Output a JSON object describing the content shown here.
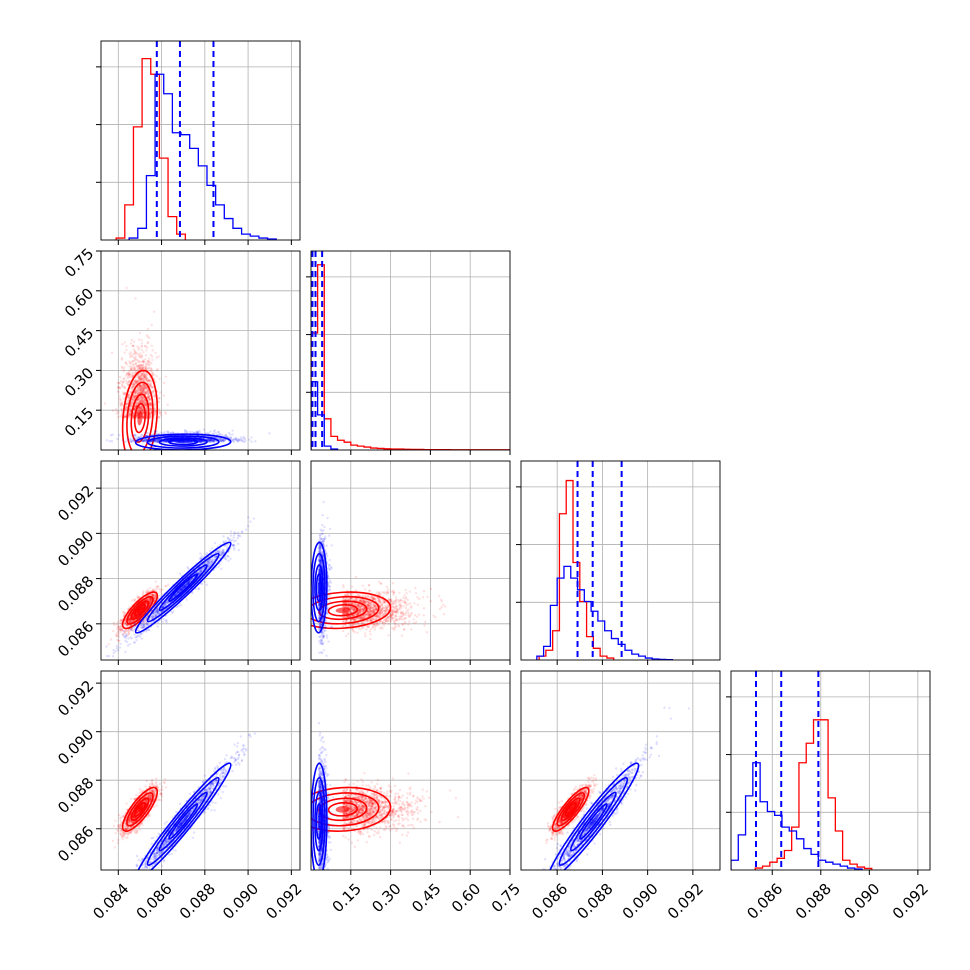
{
  "chart_data": {
    "type": "corner",
    "description_note": "",
    "parameters": [
      {
        "range": [
          0.0832,
          0.0924
        ],
        "ticks": [
          "0.084",
          "0.086",
          "0.088",
          "0.090",
          "0.092"
        ],
        "tick_values": [
          0.084,
          0.086,
          0.088,
          0.09,
          0.092
        ]
      },
      {
        "range": [
          0.0,
          0.75
        ],
        "ticks": [
          "0.15",
          "0.30",
          "0.45",
          "0.60",
          "0.75"
        ],
        "tick_values": [
          0.15,
          0.3,
          0.45,
          0.6,
          0.75
        ]
      },
      {
        "range": [
          0.0844,
          0.0932
        ],
        "ticks": [
          "0.086",
          "0.088",
          "0.090",
          "0.092"
        ],
        "tick_values": [
          0.086,
          0.088,
          0.09,
          0.092
        ]
      },
      {
        "range": [
          0.0843,
          0.0925
        ],
        "ticks": [
          "0.086",
          "0.088",
          "0.090",
          "0.092"
        ],
        "tick_values": [
          0.086,
          0.088,
          0.09,
          0.092
        ]
      }
    ],
    "series": [
      {
        "color": "#ff0000",
        "means": [
          0.085,
          0.12,
          0.0866,
          0.0868
        ],
        "sds": [
          0.0004,
          0.09,
          0.0004,
          0.00045
        ],
        "correlations": [
          [
            0,
            2,
            0.8
          ],
          [
            0,
            3,
            0.8
          ],
          [
            2,
            3,
            0.85
          ],
          [
            0,
            1,
            0.2
          ],
          [
            1,
            2,
            0.15
          ],
          [
            1,
            3,
            0.1
          ]
        ],
        "histograms": [
          {
            "start": 0.0839,
            "bin_width": 0.0004,
            "counts": [
              0.01,
              0.18,
              0.58,
              0.93,
              0.85,
              0.42,
              0.12,
              0.03
            ]
          },
          {
            "start": 0.0,
            "bin_width": 0.025,
            "counts": [
              0.6,
              0.95,
              0.16,
              0.07,
              0.05,
              0.04,
              0.025,
              0.02,
              0.015,
              0.01,
              0.008,
              0.006,
              0.005,
              0.005,
              0.004,
              0.003,
              0.003,
              0.002,
              0.002,
              0.002,
              0.002,
              0.001,
              0.001,
              0.001,
              0.001,
              0.001,
              0.001,
              0.001,
              0.001,
              0.001
            ]
          },
          {
            "start": 0.0852,
            "bin_width": 0.0003,
            "counts": [
              0.02,
              0.05,
              0.15,
              0.75,
              0.92,
              0.5,
              0.3,
              0.12,
              0.06,
              0.02,
              0.01
            ]
          },
          {
            "start": 0.0853,
            "bin_width": 0.0003,
            "counts": [
              0.01,
              0.02,
              0.04,
              0.06,
              0.1,
              0.22,
              0.55,
              0.65,
              0.77,
              0.77,
              0.37,
              0.2,
              0.05,
              0.03,
              0.015,
              0.008
            ]
          }
        ]
      },
      {
        "color": "#0000ff",
        "means": [
          0.087,
          0.03,
          0.0876,
          0.0863
        ],
        "sds": [
          0.0011,
          0.015,
          0.001,
          0.0012
        ],
        "correlations": [
          [
            0,
            2,
            0.97
          ],
          [
            0,
            3,
            0.97
          ],
          [
            2,
            3,
            0.96
          ],
          [
            0,
            1,
            0.05
          ],
          [
            1,
            2,
            0.05
          ],
          [
            1,
            3,
            0.05
          ]
        ],
        "histograms": [
          {
            "start": 0.0845,
            "bin_width": 0.0004,
            "counts": [
              0.01,
              0.06,
              0.33,
              0.85,
              0.75,
              0.55,
              0.54,
              0.47,
              0.38,
              0.28,
              0.18,
              0.11,
              0.06,
              0.03,
              0.02,
              0.01,
              0.005
            ]
          },
          {
            "start": 0.0,
            "bin_width": 0.025,
            "counts": [
              0.35,
              0.18,
              0.02,
              0.005
            ]
          },
          {
            "start": 0.0851,
            "bin_width": 0.0003,
            "counts": [
              0.02,
              0.07,
              0.28,
              0.42,
              0.48,
              0.42,
              0.36,
              0.3,
              0.25,
              0.2,
              0.15,
              0.11,
              0.08,
              0.05,
              0.03,
              0.02,
              0.01,
              0.005,
              0.003,
              0.002
            ]
          },
          {
            "start": 0.0843,
            "bin_width": 0.0003,
            "counts": [
              0.05,
              0.18,
              0.38,
              0.55,
              0.35,
              0.3,
              0.28,
              0.22,
              0.2,
              0.16,
              0.11,
              0.08,
              0.05,
              0.04,
              0.03,
              0.02,
              0.01,
              0.005
            ]
          }
        ],
        "quantiles": [
          [
            0.08578,
            0.08685,
            0.0884
          ],
          [
            0.0055,
            0.017,
            0.042
          ],
          [
            0.0869,
            0.08757,
            0.08885
          ],
          [
            0.08533,
            0.08637,
            0.0879
          ]
        ]
      }
    ],
    "grid": true,
    "quantile_line_style": "dashed"
  }
}
